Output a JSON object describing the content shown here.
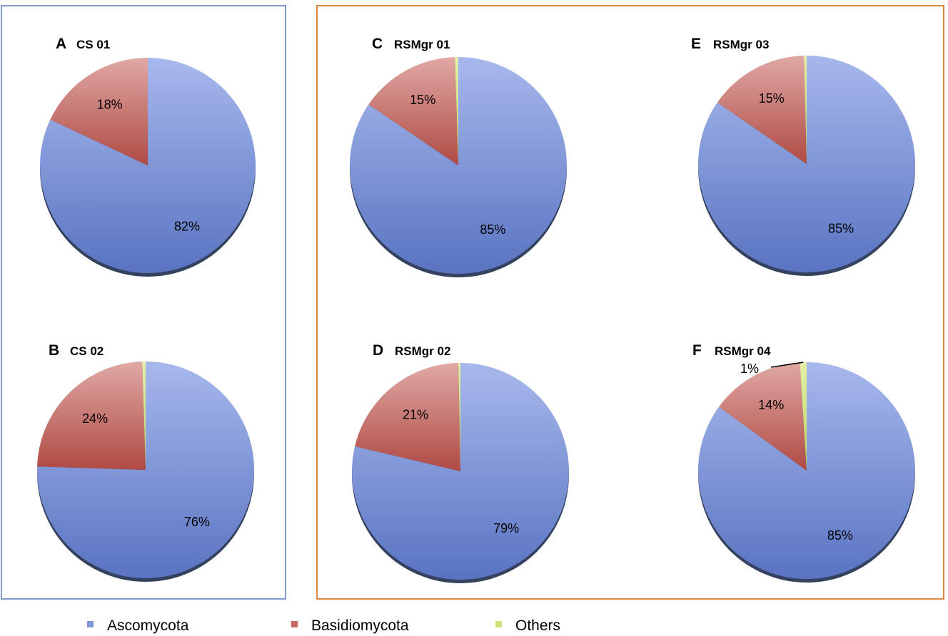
{
  "colors": {
    "ascomycota": "#7f96d8",
    "basidiomycota": "#c46b66",
    "others": "#cfe37a",
    "group_cs_border": "#7f9ccf",
    "group_rsmgr_border": "#d98a3f"
  },
  "legend": [
    {
      "label": "Ascomycota",
      "color_key": "ascomycota"
    },
    {
      "label": "Basidiomycota",
      "color_key": "basidiomycota"
    },
    {
      "label": "Others",
      "color_key": "others"
    }
  ],
  "chart_data": [
    {
      "type": "pie",
      "letter": "A",
      "title": "CS 01",
      "labels": [
        "Ascomycota",
        "Basidiomycota",
        "Others"
      ],
      "values": [
        82,
        18,
        0
      ],
      "data_labels": [
        "82%",
        "18%",
        ""
      ]
    },
    {
      "type": "pie",
      "letter": "B",
      "title": "CS 02",
      "labels": [
        "Ascomycota",
        "Basidiomycota",
        "Others"
      ],
      "values": [
        75.5,
        24,
        0.5
      ],
      "data_labels": [
        "76%",
        "24%",
        ""
      ]
    },
    {
      "type": "pie",
      "letter": "C",
      "title": "RSMgr 01",
      "labels": [
        "Ascomycota",
        "Basidiomycota",
        "Others"
      ],
      "values": [
        84.5,
        15,
        0.5
      ],
      "data_labels": [
        "85%",
        "15%",
        ""
      ]
    },
    {
      "type": "pie",
      "letter": "D",
      "title": "RSMgr 02",
      "labels": [
        "Ascomycota",
        "Basidiomycota",
        "Others"
      ],
      "values": [
        78.7,
        21,
        0.3
      ],
      "data_labels": [
        "79%",
        "21%",
        ""
      ]
    },
    {
      "type": "pie",
      "letter": "E",
      "title": "RSMgr 03",
      "labels": [
        "Ascomycota",
        "Basidiomycota",
        "Others"
      ],
      "values": [
        84.6,
        15,
        0.4
      ],
      "data_labels": [
        "85%",
        "15%",
        ""
      ]
    },
    {
      "type": "pie",
      "letter": "F",
      "title": "RSMgr 04",
      "labels": [
        "Ascomycota",
        "Basidiomycota",
        "Others"
      ],
      "values": [
        85,
        14,
        1
      ],
      "data_labels": [
        "85%",
        "14%",
        "1%"
      ]
    }
  ]
}
